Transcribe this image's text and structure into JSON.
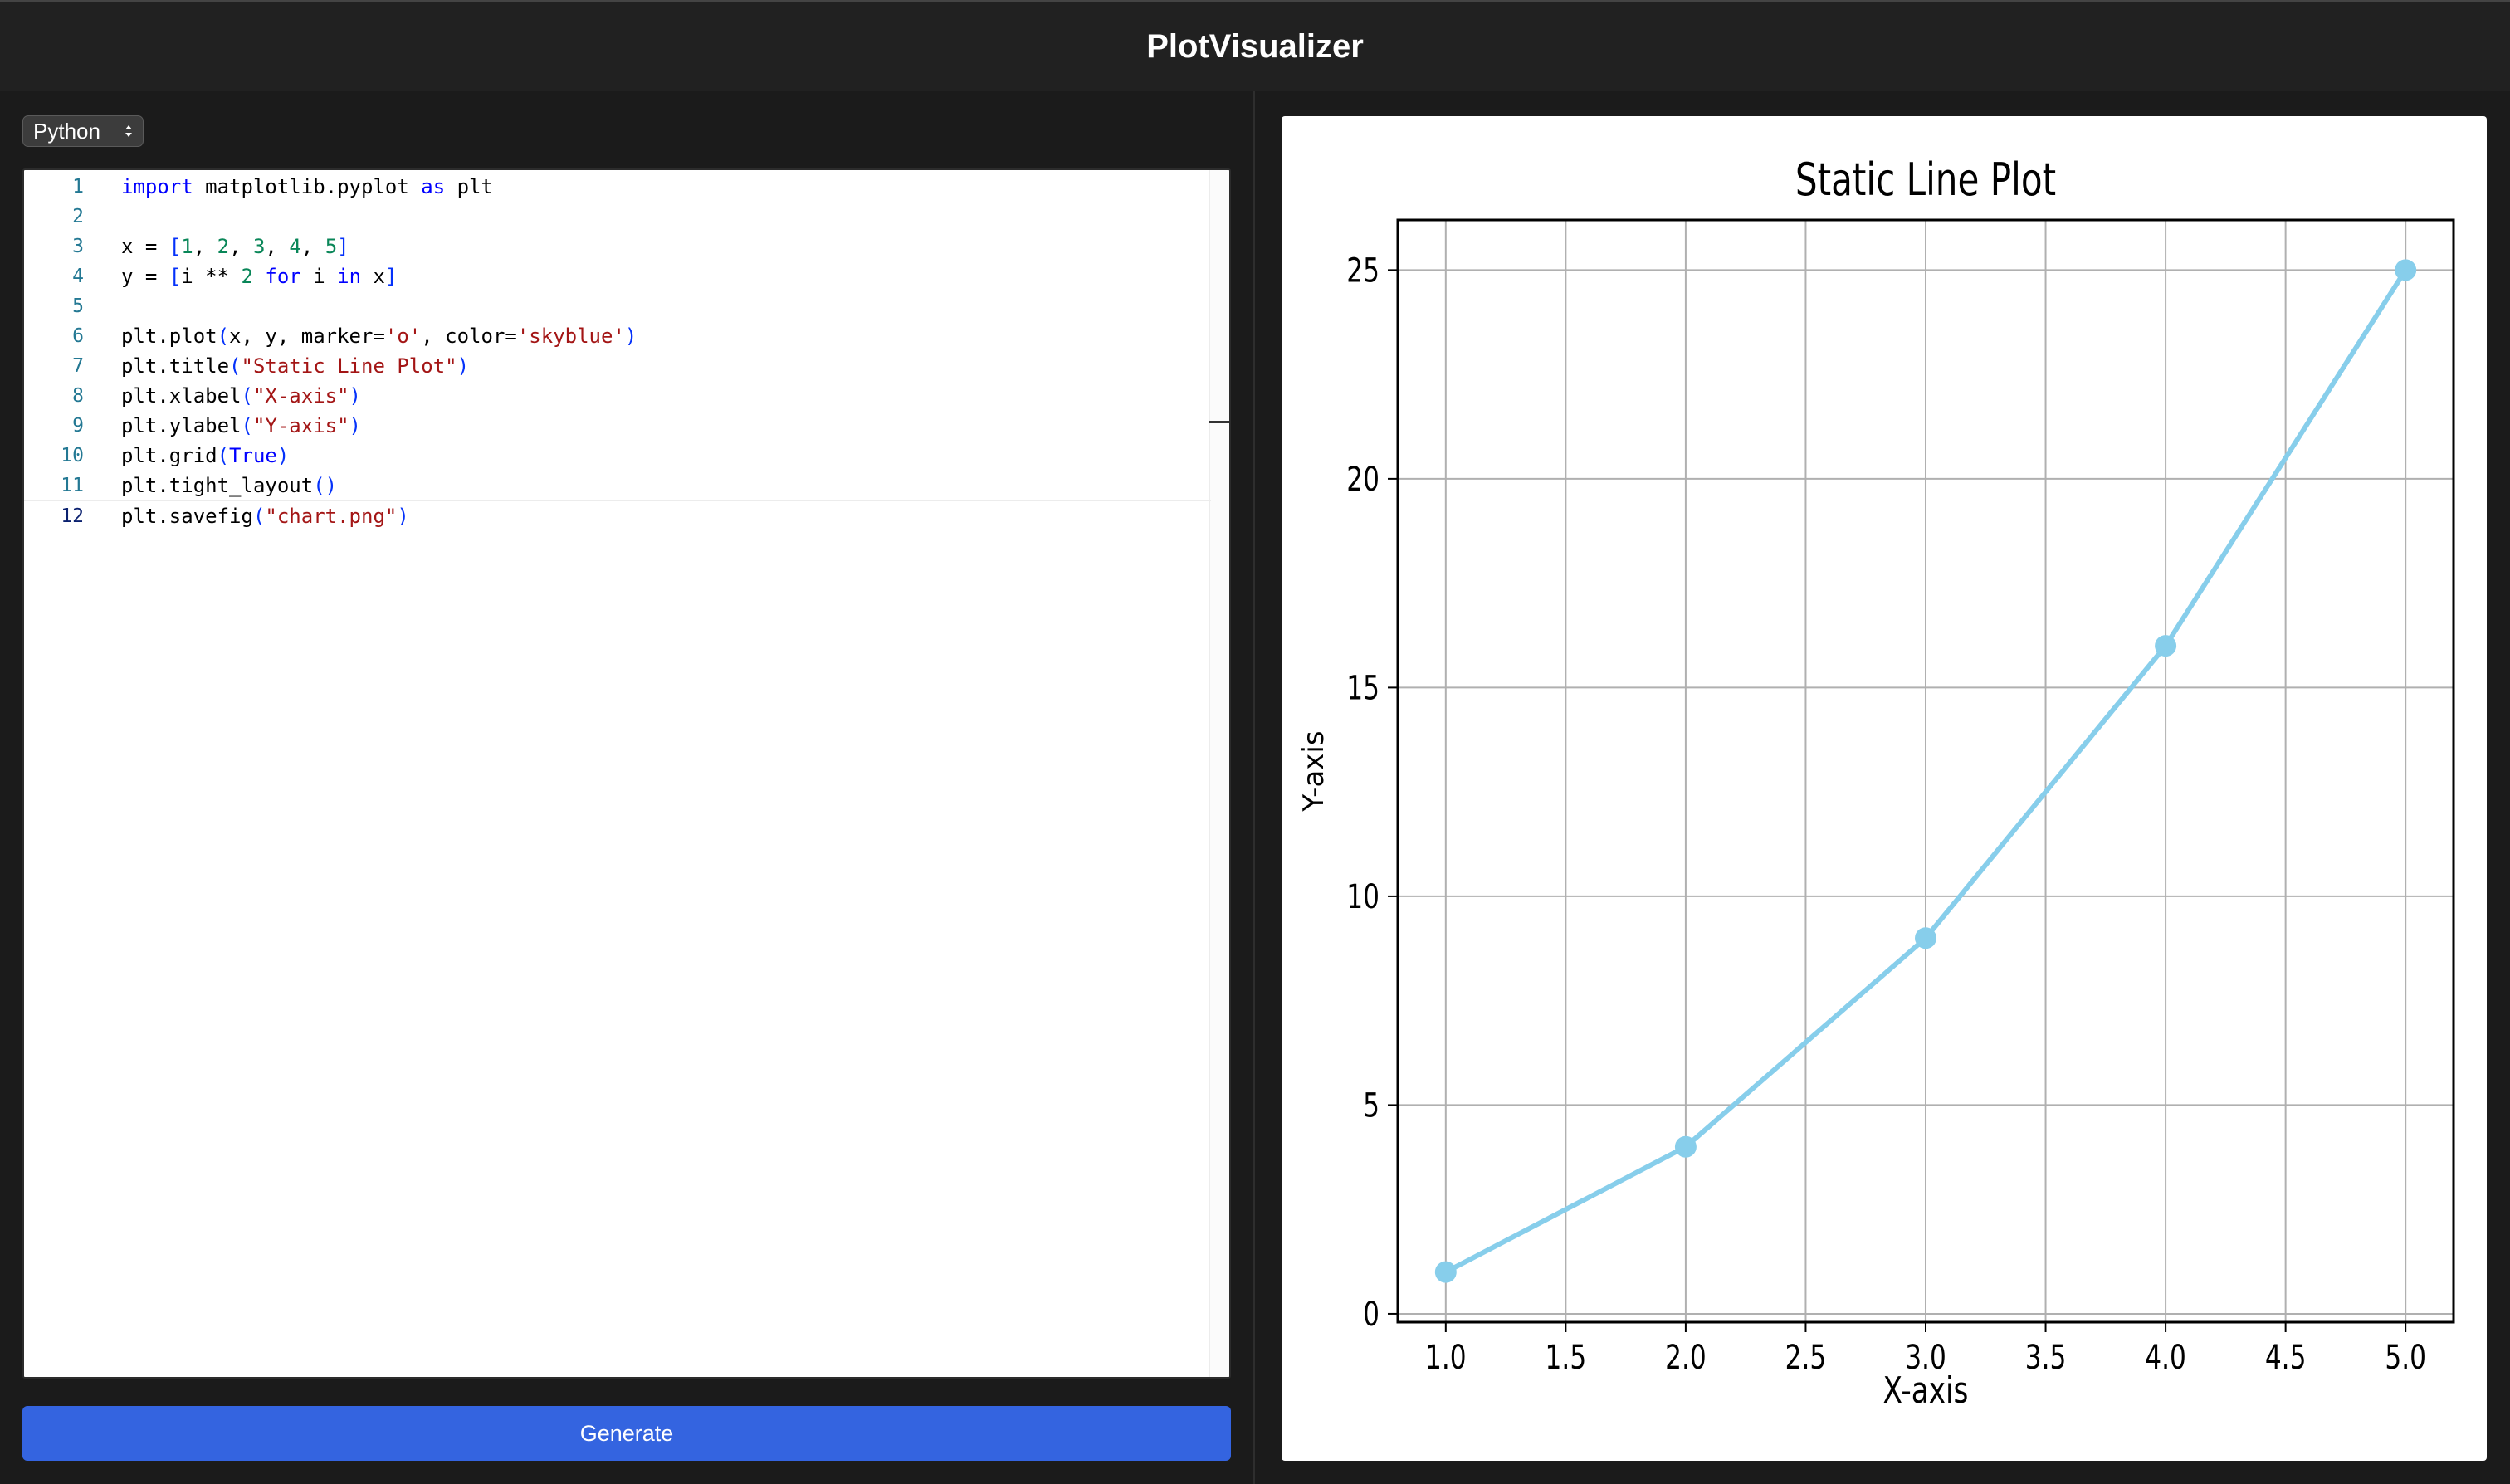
{
  "app": {
    "title": "PlotVisualizer"
  },
  "language_select": {
    "value": "Python"
  },
  "editor": {
    "lines": [
      {
        "n": "1",
        "html_parts": [
          [
            "kw",
            "import"
          ],
          [
            "t",
            " matplotlib.pyplot "
          ],
          [
            "kw",
            "as"
          ],
          [
            "t",
            " plt"
          ]
        ]
      },
      {
        "n": "2",
        "html_parts": []
      },
      {
        "n": "3",
        "html_parts": [
          [
            "t",
            "x = "
          ],
          [
            "br",
            "["
          ],
          [
            "num",
            "1"
          ],
          [
            "t",
            ", "
          ],
          [
            "num",
            "2"
          ],
          [
            "t",
            ", "
          ],
          [
            "num",
            "3"
          ],
          [
            "t",
            ", "
          ],
          [
            "num",
            "4"
          ],
          [
            "t",
            ", "
          ],
          [
            "num",
            "5"
          ],
          [
            "br",
            "]"
          ]
        ]
      },
      {
        "n": "4",
        "html_parts": [
          [
            "t",
            "y = "
          ],
          [
            "br",
            "["
          ],
          [
            "t",
            "i ** "
          ],
          [
            "num",
            "2"
          ],
          [
            "t",
            " "
          ],
          [
            "kw",
            "for"
          ],
          [
            "t",
            " i "
          ],
          [
            "kw",
            "in"
          ],
          [
            "t",
            " x"
          ],
          [
            "br",
            "]"
          ]
        ]
      },
      {
        "n": "5",
        "html_parts": []
      },
      {
        "n": "6",
        "html_parts": [
          [
            "t",
            "plt.plot"
          ],
          [
            "br",
            "("
          ],
          [
            "t",
            "x, y, marker="
          ],
          [
            "str",
            "'o'"
          ],
          [
            "t",
            ", color="
          ],
          [
            "str",
            "'skyblue'"
          ],
          [
            "br",
            ")"
          ]
        ]
      },
      {
        "n": "7",
        "html_parts": [
          [
            "t",
            "plt.title"
          ],
          [
            "br",
            "("
          ],
          [
            "str",
            "\"Static Line Plot\""
          ],
          [
            "br",
            ")"
          ]
        ]
      },
      {
        "n": "8",
        "html_parts": [
          [
            "t",
            "plt.xlabel"
          ],
          [
            "br",
            "("
          ],
          [
            "str",
            "\"X-axis\""
          ],
          [
            "br",
            ")"
          ]
        ]
      },
      {
        "n": "9",
        "html_parts": [
          [
            "t",
            "plt.ylabel"
          ],
          [
            "br",
            "("
          ],
          [
            "str",
            "\"Y-axis\""
          ],
          [
            "br",
            ")"
          ]
        ]
      },
      {
        "n": "10",
        "html_parts": [
          [
            "t",
            "plt.grid"
          ],
          [
            "br",
            "("
          ],
          [
            "kw",
            "True"
          ],
          [
            "br",
            ")"
          ]
        ]
      },
      {
        "n": "11",
        "html_parts": [
          [
            "t",
            "plt.tight_layout"
          ],
          [
            "br",
            "()"
          ]
        ]
      },
      {
        "n": "12",
        "html_parts": [
          [
            "t",
            "plt.savefig"
          ],
          [
            "br",
            "("
          ],
          [
            "str",
            "\"chart.png\""
          ],
          [
            "br",
            ")"
          ]
        ]
      }
    ],
    "active_line": "12"
  },
  "generate_button": {
    "label": "Generate"
  },
  "chart_data": {
    "type": "line",
    "title": "Static Line Plot",
    "xlabel": "X-axis",
    "ylabel": "Y-axis",
    "x": [
      1,
      2,
      3,
      4,
      5
    ],
    "series": [
      {
        "values": [
          1,
          4,
          9,
          16,
          25
        ],
        "color": "#87ceeb",
        "marker": "o"
      }
    ],
    "xlim": [
      0.8,
      5.2
    ],
    "ylim": [
      -0.2,
      26.2
    ],
    "xticks": [
      "1.0",
      "1.5",
      "2.0",
      "2.5",
      "3.0",
      "3.5",
      "4.0",
      "4.5",
      "5.0"
    ],
    "yticks": [
      "0",
      "5",
      "10",
      "15",
      "20",
      "25"
    ],
    "grid": true
  },
  "colors": {
    "accent": "#3464e0",
    "line": "#87ceeb"
  }
}
